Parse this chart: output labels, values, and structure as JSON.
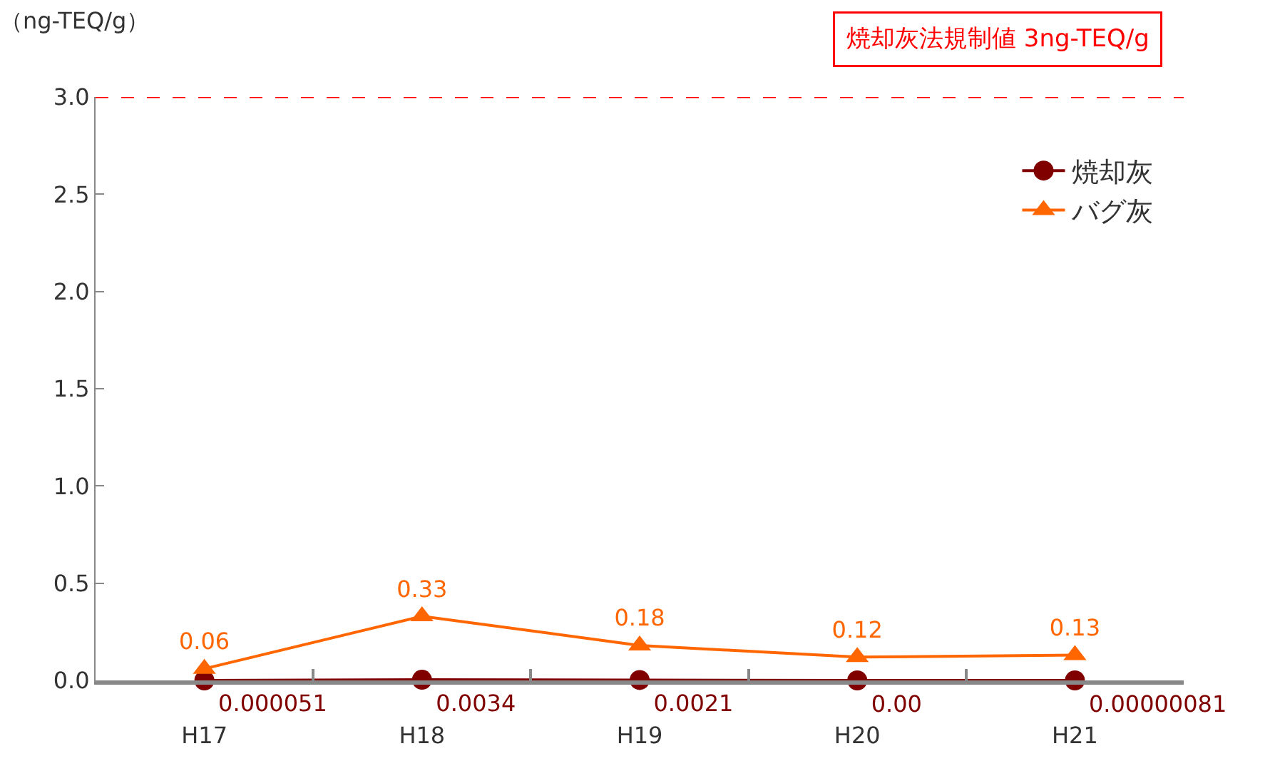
{
  "chart_data": {
    "type": "line",
    "ylabel": "（ng-TEQ/g）",
    "categories": [
      "H17",
      "H18",
      "H19",
      "H20",
      "H21"
    ],
    "series": [
      {
        "name": "焼却灰",
        "color": "#800000",
        "marker": "circle",
        "values": [
          5.1e-05,
          0.0034,
          0.0021,
          0.0,
          8.1e-07
        ],
        "value_labels": [
          "0.000051",
          "0.0034",
          "0.0021",
          "0.00",
          "0.00000081"
        ]
      },
      {
        "name": "バグ灰",
        "color": "#ff6600",
        "marker": "triangle",
        "values": [
          0.06,
          0.33,
          0.18,
          0.12,
          0.13
        ],
        "value_labels": [
          "0.06",
          "0.33",
          "0.18",
          "0.12",
          "0.13"
        ]
      }
    ],
    "ylim": [
      0,
      3.0
    ],
    "yticks": [
      {
        "value": 0,
        "label": "0.0"
      },
      {
        "value": 0.5,
        "label": "0.5"
      },
      {
        "value": 1,
        "label": "1.0"
      },
      {
        "value": 1.5,
        "label": "1.5"
      },
      {
        "value": 2,
        "label": "2.0"
      },
      {
        "value": 2.5,
        "label": "2.5"
      },
      {
        "value": 3,
        "label": "3.0"
      }
    ],
    "ref_lines": [
      {
        "axis": "y",
        "value": 3,
        "label": "焼却灰法規制値 3ng-TEQ/g",
        "color": "#ff0000",
        "line_style": "dashed"
      }
    ],
    "grid": false,
    "legend": "top right"
  }
}
